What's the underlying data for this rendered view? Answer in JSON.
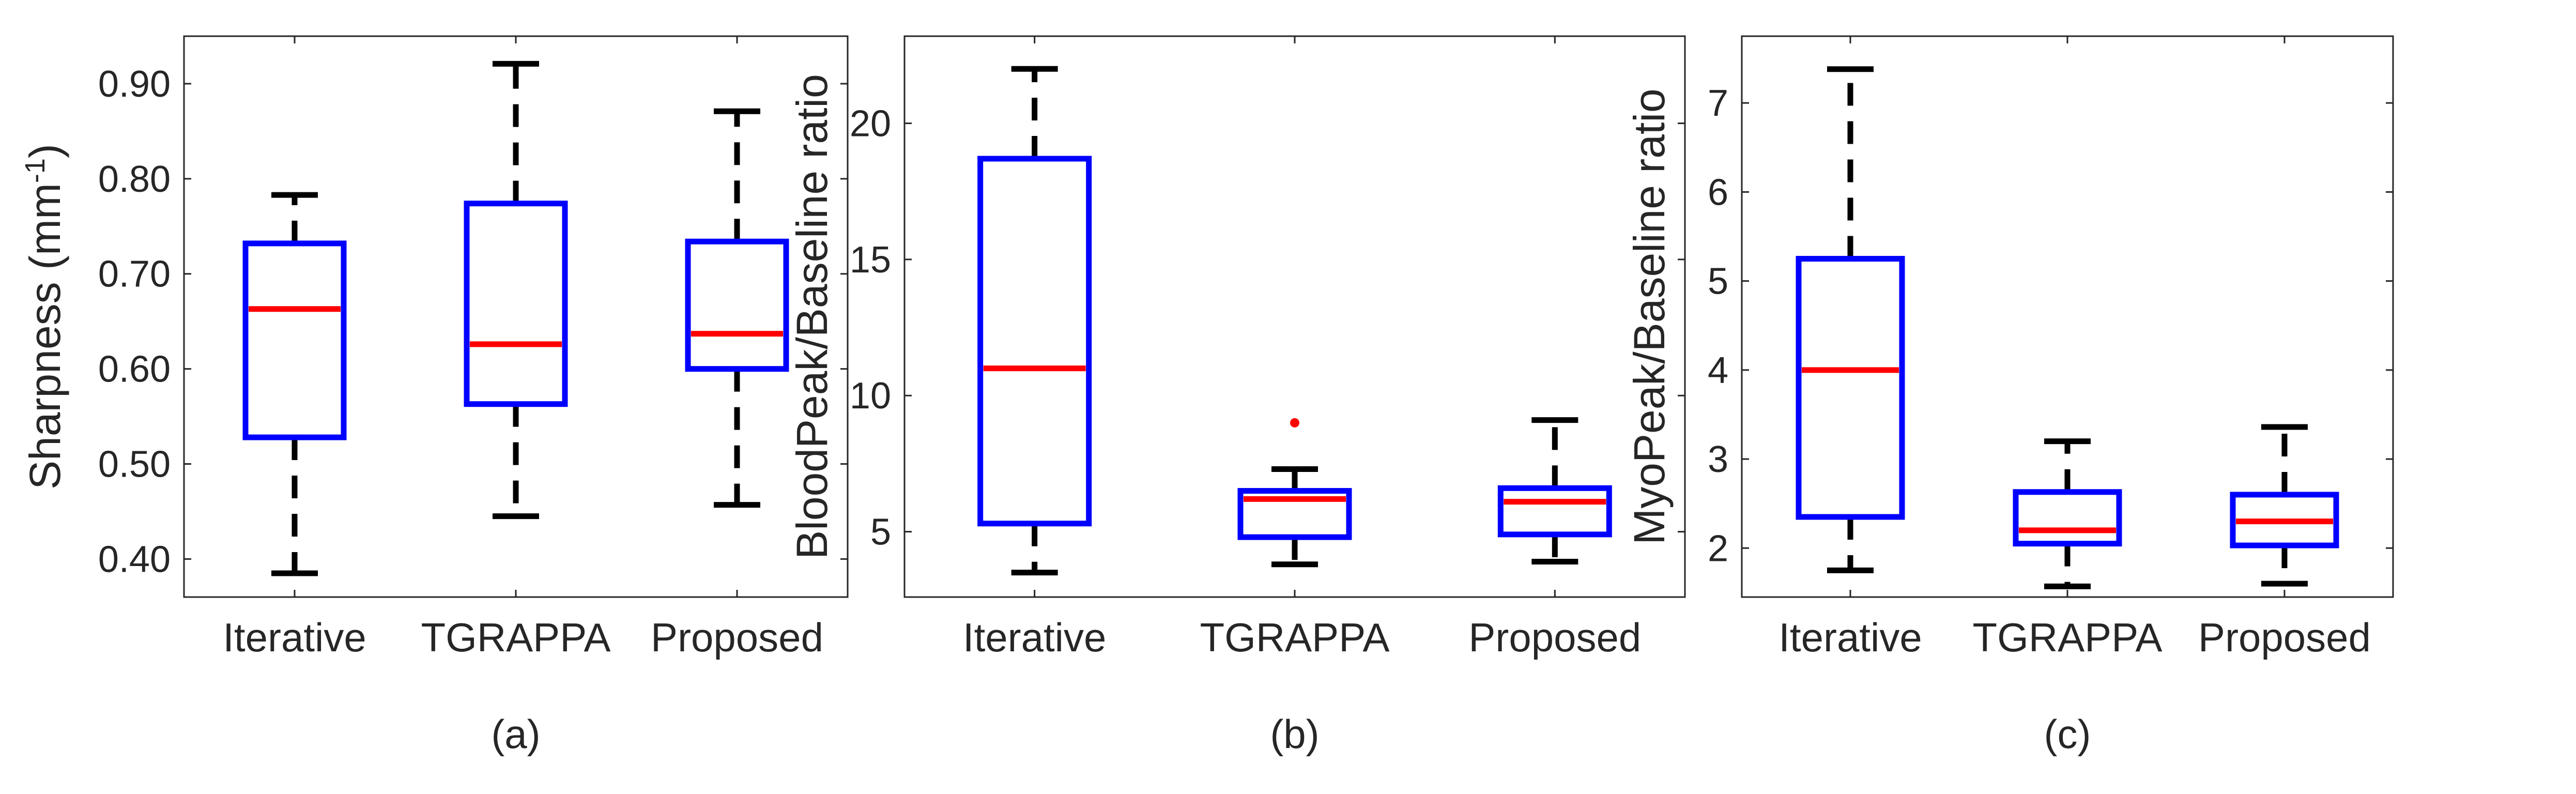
{
  "chart_data": [
    {
      "type": "box",
      "panel_label": "(a)",
      "xlabel": "",
      "ylabel_main": "Sharpness (mm",
      "ylabel_sup": "-1",
      "ylabel_tail": ")",
      "ylim": [
        0.36,
        0.95
      ],
      "yticks": [
        0.4,
        0.5,
        0.6,
        0.7,
        0.8,
        0.9
      ],
      "ytick_labels": [
        "0.40",
        "0.50",
        "0.60",
        "0.70",
        "0.80",
        "0.90"
      ],
      "categories": [
        "Iterative",
        "TGRAPPA",
        "Proposed"
      ],
      "boxes": [
        {
          "whisker_low": 0.385,
          "q1": 0.528,
          "median": 0.663,
          "q3": 0.732,
          "whisker_high": 0.783,
          "outliers": []
        },
        {
          "whisker_low": 0.445,
          "q1": 0.563,
          "median": 0.626,
          "q3": 0.774,
          "whisker_high": 0.921,
          "outliers": []
        },
        {
          "whisker_low": 0.457,
          "q1": 0.6,
          "median": 0.637,
          "q3": 0.734,
          "whisker_high": 0.871,
          "outliers": []
        }
      ]
    },
    {
      "type": "box",
      "panel_label": "(b)",
      "xlabel": "",
      "ylabel_main": "BloodPeak/Baseline ratio",
      "ylabel_sup": "",
      "ylabel_tail": "",
      "ylim": [
        2.6,
        23.2
      ],
      "yticks": [
        5,
        10,
        15,
        20
      ],
      "ytick_labels": [
        "5",
        "10",
        "15",
        "20"
      ],
      "categories": [
        "Iterative",
        "TGRAPPA",
        "Proposed"
      ],
      "boxes": [
        {
          "whisker_low": 3.5,
          "q1": 5.3,
          "median": 11.0,
          "q3": 18.7,
          "whisker_high": 22.0,
          "outliers": []
        },
        {
          "whisker_low": 3.8,
          "q1": 4.8,
          "median": 6.2,
          "q3": 6.5,
          "whisker_high": 7.3,
          "outliers": [
            9.0
          ]
        },
        {
          "whisker_low": 3.9,
          "q1": 4.9,
          "median": 6.1,
          "q3": 6.6,
          "whisker_high": 9.1,
          "outliers": []
        }
      ]
    },
    {
      "type": "box",
      "panel_label": "(c)",
      "xlabel": "",
      "ylabel_main": "MyoPeak/Baseline ratio",
      "ylabel_sup": "",
      "ylabel_tail": "",
      "ylim": [
        1.45,
        7.75
      ],
      "yticks": [
        2,
        3,
        4,
        5,
        6,
        7
      ],
      "ytick_labels": [
        "2",
        "3",
        "4",
        "5",
        "6",
        "7"
      ],
      "categories": [
        "Iterative",
        "TGRAPPA",
        "Proposed"
      ],
      "boxes": [
        {
          "whisker_low": 1.75,
          "q1": 2.35,
          "median": 4.0,
          "q3": 5.25,
          "whisker_high": 7.38,
          "outliers": []
        },
        {
          "whisker_low": 1.57,
          "q1": 2.05,
          "median": 2.2,
          "q3": 2.63,
          "whisker_high": 3.2,
          "outliers": []
        },
        {
          "whisker_low": 1.6,
          "q1": 2.03,
          "median": 2.3,
          "q3": 2.6,
          "whisker_high": 3.36,
          "outliers": []
        }
      ]
    }
  ],
  "colors": {
    "box": "#0000ff",
    "median": "#ff0000",
    "whisker": "#000000",
    "outlier": "#ff0000",
    "axis": "#262626"
  }
}
